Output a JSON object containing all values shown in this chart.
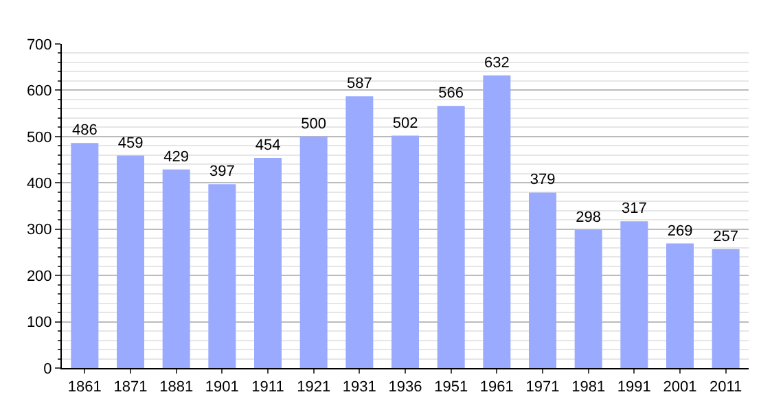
{
  "chart_data": {
    "type": "bar",
    "categories": [
      "1861",
      "1871",
      "1881",
      "1901",
      "1911",
      "1921",
      "1931",
      "1936",
      "1951",
      "1961",
      "1971",
      "1981",
      "1991",
      "2001",
      "2011"
    ],
    "values": [
      486,
      459,
      429,
      397,
      454,
      500,
      587,
      502,
      566,
      632,
      379,
      298,
      317,
      269,
      257
    ],
    "color": "#99aaff",
    "ylim": [
      0,
      700
    ],
    "yticks": [
      0,
      100,
      200,
      300,
      400,
      500,
      600,
      700
    ],
    "grid": "y",
    "data_labels": true
  }
}
